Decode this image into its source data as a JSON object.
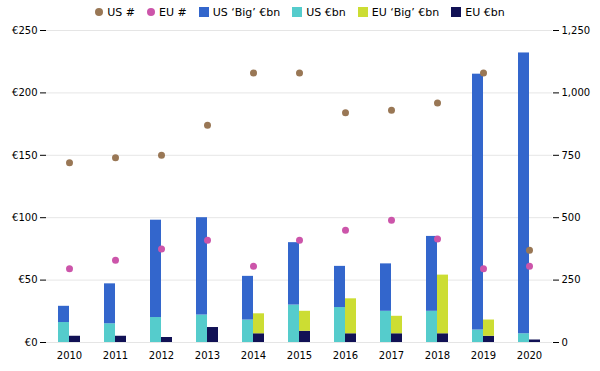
{
  "chart_data": {
    "type": "bar",
    "stacked": true,
    "grid": true,
    "categories": [
      "2010",
      "2011",
      "2012",
      "2013",
      "2014",
      "2015",
      "2016",
      "2017",
      "2018",
      "2019",
      "2020"
    ],
    "ylim": [
      0,
      250
    ],
    "yticks": [
      {
        "value": 0,
        "label": "€0"
      },
      {
        "value": 50,
        "label": "€50"
      },
      {
        "value": 100,
        "label": "€100"
      },
      {
        "value": 150,
        "label": "€150"
      },
      {
        "value": 200,
        "label": "€200"
      },
      {
        "value": 250,
        "label": "€250"
      }
    ],
    "y2lim": [
      0,
      1250
    ],
    "y2ticks": [
      0,
      250,
      500,
      750,
      {
        "value": 1000,
        "label": "1,000"
      },
      {
        "value": 1250,
        "label": "1,250"
      }
    ],
    "series": [
      {
        "name": "US #",
        "type": "scatter",
        "axis": "y2",
        "marker": "circle",
        "color": "#997755",
        "values": [
          720,
          740,
          750,
          870,
          1080,
          1080,
          920,
          930,
          960,
          1080,
          370
        ]
      },
      {
        "name": "EU #",
        "type": "scatter",
        "axis": "y2",
        "marker": "circle",
        "color": "#cc55aa",
        "values": [
          295,
          330,
          375,
          410,
          305,
          410,
          450,
          490,
          415,
          295,
          305
        ]
      },
      {
        "name": "US ‘Big’ €bn",
        "type": "bar",
        "color": "#3366cc",
        "values": [
          13,
          32,
          78,
          78,
          35,
          50,
          33,
          38,
          60,
          205,
          225
        ]
      },
      {
        "name": "US €bn",
        "type": "bar",
        "color": "#55cccc",
        "values": [
          16,
          15,
          20,
          22,
          18,
          30,
          28,
          25,
          25,
          10,
          7
        ]
      },
      {
        "name": "EU ‘Big’ €bn",
        "type": "bar",
        "color": "#ccdd33",
        "values": [
          0,
          0,
          0,
          0,
          16,
          16,
          28,
          14,
          47,
          13,
          0
        ]
      },
      {
        "name": "EU €bn",
        "type": "bar",
        "color": "#111155",
        "values": [
          5,
          5,
          4,
          12,
          7,
          9,
          7,
          7,
          7,
          5,
          2
        ]
      }
    ]
  }
}
